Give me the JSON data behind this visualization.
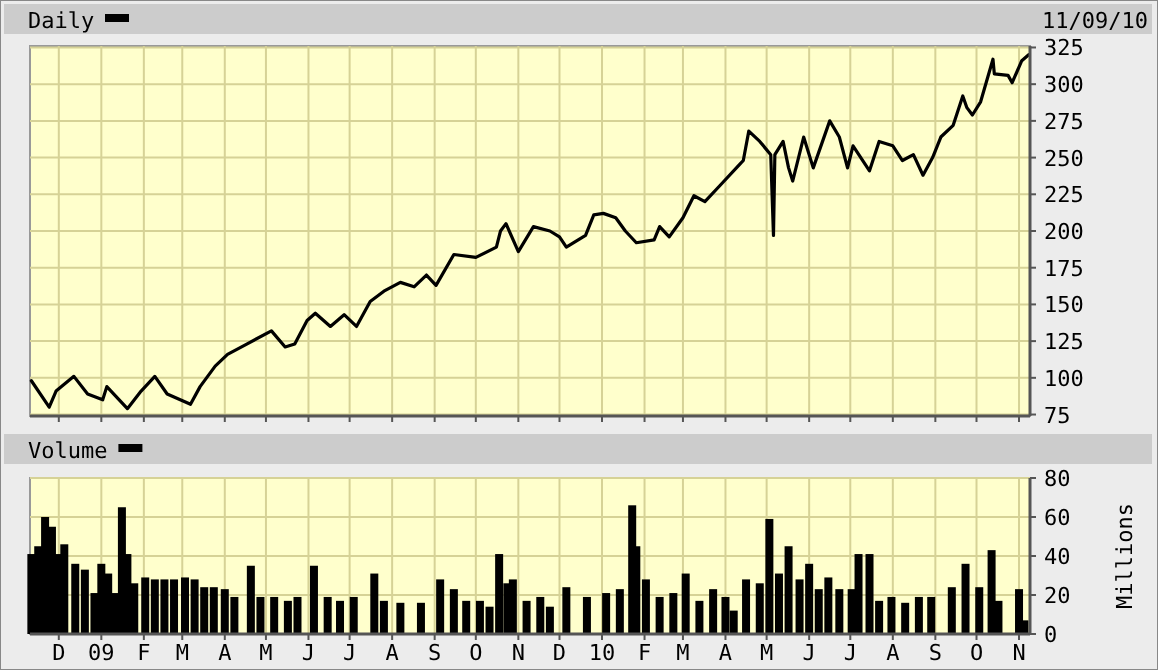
{
  "chart_data": [
    {
      "type": "line",
      "subtitle": "11/09/10",
      "legend": "top left",
      "grid": true,
      "tick_labels": "y",
      "xlim": [
        "2008-11-10",
        "2010-11-09"
      ],
      "xticks": [
        {
          "value": "2008-12-01",
          "label": null
        },
        {
          "value": "2009-01-01",
          "label": null
        },
        {
          "value": "2009-02-01",
          "label": null
        },
        {
          "value": "2009-03-01",
          "label": null
        },
        {
          "value": "2009-04-01",
          "label": null
        },
        {
          "value": "2009-05-01",
          "label": null
        },
        {
          "value": "2009-06-01",
          "label": null
        },
        {
          "value": "2009-07-01",
          "label": null
        },
        {
          "value": "2009-08-01",
          "label": null
        },
        {
          "value": "2009-09-01",
          "label": null
        },
        {
          "value": "2009-10-01",
          "label": null
        },
        {
          "value": "2009-11-01",
          "label": null
        },
        {
          "value": "2009-12-01",
          "label": null
        },
        {
          "value": "2010-01-01",
          "label": null
        },
        {
          "value": "2010-02-01",
          "label": null
        },
        {
          "value": "2010-03-01",
          "label": null
        },
        {
          "value": "2010-04-01",
          "label": null
        },
        {
          "value": "2010-05-01",
          "label": null
        },
        {
          "value": "2010-06-01",
          "label": null
        },
        {
          "value": "2010-07-01",
          "label": null
        },
        {
          "value": "2010-08-01",
          "label": null
        },
        {
          "value": "2010-09-01",
          "label": null
        },
        {
          "value": "2010-10-01",
          "label": null
        },
        {
          "value": "2010-11-01",
          "label": null
        }
      ],
      "ylim": [
        74,
        326
      ],
      "yticks": [
        75,
        100,
        125,
        150,
        175,
        200,
        225,
        250,
        275,
        300,
        325
      ],
      "series": [
        {
          "name": "Daily",
          "color": "#000000",
          "x": [
            "2008-11-11",
            "2008-11-24",
            "2008-11-29",
            "2008-12-12",
            "2008-12-22",
            "2009-01-02",
            "2009-01-05",
            "2009-01-20",
            "2009-01-30",
            "2009-02-09",
            "2009-02-18",
            "2009-03-07",
            "2009-03-14",
            "2009-03-25",
            "2009-04-03",
            "2009-04-17",
            "2009-05-05",
            "2009-05-15",
            "2009-05-22",
            "2009-05-31",
            "2009-06-06",
            "2009-06-17",
            "2009-06-27",
            "2009-07-06",
            "2009-07-16",
            "2009-07-26",
            "2009-08-07",
            "2009-08-17",
            "2009-08-26",
            "2009-09-02",
            "2009-09-15",
            "2009-10-01",
            "2009-10-16",
            "2009-10-19",
            "2009-10-23",
            "2009-11-01",
            "2009-11-12",
            "2009-11-24",
            "2009-12-01",
            "2009-12-06",
            "2009-12-20",
            "2009-12-26",
            "2010-01-02",
            "2010-01-11",
            "2010-01-18",
            "2010-01-26",
            "2010-02-08",
            "2010-02-12",
            "2010-02-19",
            "2010-03-01",
            "2010-03-09",
            "2010-03-17",
            "2010-03-28",
            "2010-04-11",
            "2010-04-14",
            "2010-04-18",
            "2010-04-26",
            "2010-05-04",
            "2010-05-06",
            "2010-05-07",
            "2010-05-13",
            "2010-05-17",
            "2010-05-20",
            "2010-05-28",
            "2010-06-04",
            "2010-06-16",
            "2010-06-23",
            "2010-06-29",
            "2010-07-03",
            "2010-07-15",
            "2010-07-22",
            "2010-08-01",
            "2010-08-08",
            "2010-08-16",
            "2010-08-23",
            "2010-08-30",
            "2010-09-05",
            "2010-09-14",
            "2010-09-21",
            "2010-09-24",
            "2010-09-28",
            "2010-10-04",
            "2010-10-13",
            "2010-10-14",
            "2010-10-24",
            "2010-10-27",
            "2010-11-03",
            "2010-11-08"
          ],
          "values": [
            98,
            80,
            91,
            101,
            89,
            85,
            94,
            79,
            91,
            101,
            89,
            82,
            94,
            108,
            116,
            123,
            132,
            121,
            123,
            139,
            144,
            135,
            143,
            135,
            152,
            159,
            165,
            162,
            170,
            163,
            184,
            182,
            189,
            200,
            205,
            186,
            203,
            200,
            196,
            189,
            197,
            211,
            212,
            209,
            200,
            192,
            194,
            203,
            196,
            209,
            224,
            220,
            231,
            245,
            248,
            268,
            261,
            252,
            197,
            252,
            261,
            243,
            234,
            264,
            243,
            275,
            264,
            243,
            258,
            241,
            261,
            258,
            248,
            252,
            238,
            250,
            264,
            272,
            292,
            284,
            279,
            288,
            317,
            307,
            306,
            301,
            316,
            320
          ]
        }
      ]
    },
    {
      "type": "bar",
      "ylabel": "Millions",
      "legend": "top left",
      "grid": true,
      "xlim": [
        "2008-11-10",
        "2010-11-09"
      ],
      "xticks": [
        {
          "value": "2008-12-01",
          "label": "D"
        },
        {
          "value": "2009-01-01",
          "label": "09"
        },
        {
          "value": "2009-02-01",
          "label": "F"
        },
        {
          "value": "2009-03-01",
          "label": "M"
        },
        {
          "value": "2009-04-01",
          "label": "A"
        },
        {
          "value": "2009-05-01",
          "label": "M"
        },
        {
          "value": "2009-06-01",
          "label": "J"
        },
        {
          "value": "2009-07-01",
          "label": "J"
        },
        {
          "value": "2009-08-01",
          "label": "A"
        },
        {
          "value": "2009-09-01",
          "label": "S"
        },
        {
          "value": "2009-10-01",
          "label": "O"
        },
        {
          "value": "2009-11-01",
          "label": "N"
        },
        {
          "value": "2009-12-01",
          "label": "D"
        },
        {
          "value": "2010-01-01",
          "label": "10"
        },
        {
          "value": "2010-02-01",
          "label": "F"
        },
        {
          "value": "2010-03-01",
          "label": "M"
        },
        {
          "value": "2010-04-01",
          "label": "A"
        },
        {
          "value": "2010-05-01",
          "label": "M"
        },
        {
          "value": "2010-06-01",
          "label": "J"
        },
        {
          "value": "2010-07-01",
          "label": "J"
        },
        {
          "value": "2010-08-01",
          "label": "A"
        },
        {
          "value": "2010-09-01",
          "label": "S"
        },
        {
          "value": "2010-10-01",
          "label": "O"
        },
        {
          "value": "2010-11-01",
          "label": "N"
        }
      ],
      "ylim": [
        0,
        80
      ],
      "yticks": [
        0,
        20,
        40,
        60,
        80
      ],
      "series": [
        {
          "name": "Volume",
          "color": "#000000",
          "x": [
            "2008-11-11",
            "2008-11-16",
            "2008-11-21",
            "2008-11-26",
            "2008-11-30",
            "2008-12-05",
            "2008-12-13",
            "2008-12-20",
            "2008-12-27",
            "2009-01-01",
            "2009-01-06",
            "2009-01-11",
            "2009-01-16",
            "2009-01-20",
            "2009-01-25",
            "2009-02-02",
            "2009-02-09",
            "2009-02-16",
            "2009-02-23",
            "2009-03-03",
            "2009-03-10",
            "2009-03-17",
            "2009-03-24",
            "2009-04-01",
            "2009-04-08",
            "2009-04-20",
            "2009-04-27",
            "2009-05-07",
            "2009-05-17",
            "2009-05-24",
            "2009-06-05",
            "2009-06-15",
            "2009-06-24",
            "2009-07-04",
            "2009-07-19",
            "2009-07-26",
            "2009-08-07",
            "2009-08-22",
            "2009-09-05",
            "2009-09-15",
            "2009-09-24",
            "2009-10-04",
            "2009-10-11",
            "2009-10-18",
            "2009-10-24",
            "2009-10-28",
            "2009-11-07",
            "2009-11-17",
            "2009-11-24",
            "2009-12-06",
            "2009-12-21",
            "2010-01-04",
            "2010-01-14",
            "2010-01-23",
            "2010-01-26",
            "2010-02-02",
            "2010-02-12",
            "2010-02-22",
            "2010-03-03",
            "2010-03-13",
            "2010-03-23",
            "2010-04-01",
            "2010-04-07",
            "2010-04-16",
            "2010-04-26",
            "2010-05-03",
            "2010-05-10",
            "2010-05-17",
            "2010-05-25",
            "2010-06-01",
            "2010-06-08",
            "2010-06-15",
            "2010-06-23",
            "2010-07-02",
            "2010-07-07",
            "2010-07-15",
            "2010-07-22",
            "2010-07-31",
            "2010-08-10",
            "2010-08-20",
            "2010-08-29",
            "2010-09-13",
            "2010-09-23",
            "2010-10-03",
            "2010-10-12",
            "2010-10-17",
            "2010-11-01",
            "2010-11-05"
          ],
          "values": [
            41,
            45,
            60,
            55,
            41,
            46,
            36,
            33,
            21,
            36,
            31,
            21,
            65,
            41,
            26,
            29,
            28,
            28,
            28,
            29,
            28,
            24,
            24,
            23,
            19,
            35,
            19,
            19,
            17,
            19,
            35,
            19,
            17,
            19,
            31,
            17,
            16,
            16,
            28,
            23,
            17,
            17,
            14,
            41,
            26,
            28,
            17,
            19,
            14,
            24,
            19,
            21,
            23,
            66,
            45,
            28,
            19,
            21,
            31,
            17,
            23,
            19,
            12,
            28,
            26,
            59,
            31,
            45,
            28,
            36,
            23,
            29,
            23,
            23,
            41,
            41,
            17,
            19,
            16,
            19,
            19,
            24,
            36,
            24,
            43,
            17,
            23,
            7
          ]
        }
      ]
    }
  ]
}
